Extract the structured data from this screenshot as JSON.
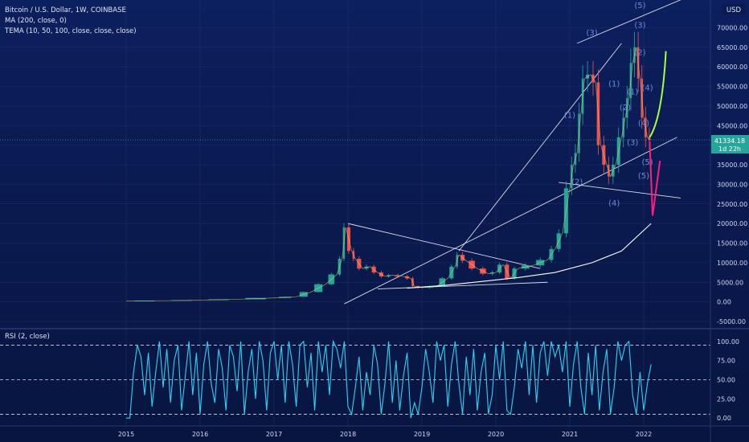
{
  "colors": {
    "background": "#0b1a4d",
    "price_line": "#ffffff",
    "rsi_line": "#2bd3f5",
    "ma_line": "#ffffff",
    "tema_fast": "#f0c850",
    "tema_slow": "#c0392b",
    "bull_candle": "#26a69a",
    "bear_candle": "#ef5350",
    "arrow_up": "#a8ff3e",
    "arrow_down": "#ff1e7a",
    "trendline": "#ffffff",
    "label_bg": "#26a69a",
    "grid": "#1e2f66",
    "wave_label": "#6f8bd8"
  },
  "header": {
    "title": "Bitcoin / U.S. Dollar, 1W, COINBASE",
    "ma": "MA (200, close, 0)",
    "tema": "TEMA (10, 50, 100, close, close, close)",
    "currency": "USD"
  },
  "price_label": {
    "value": "41334.18",
    "countdown": "1d 22h"
  },
  "rsi_label": "RSI (2, close)",
  "chart_data": [
    {
      "type": "line",
      "title": "Bitcoin / U.S. Dollar, 1W, COINBASE",
      "ylim": [
        -5000,
        75000
      ],
      "yticks": [
        -5000,
        0,
        5000,
        10000,
        15000,
        20000,
        25000,
        30000,
        35000,
        40000,
        45000,
        50000,
        55000,
        60000,
        65000,
        70000
      ],
      "ytick_labels": [
        "-5000.00",
        "0.00",
        "5000.00",
        "10000.00",
        "15000.00",
        "20000.00",
        "25000.00",
        "30000.00",
        "35000.00",
        "40000.00",
        "45000.00",
        "50000.00",
        "55000.00",
        "60000.00",
        "65000.00",
        "70000.00"
      ],
      "xlim": [
        2015.0,
        2022.5
      ],
      "xticks": [
        2015,
        2016,
        2017,
        2018,
        2019,
        2020,
        2021,
        2022
      ],
      "xtick_labels": [
        "2015",
        "2016",
        "2017",
        "2018",
        "2019",
        "2020",
        "2021",
        "2022"
      ],
      "series": [
        {
          "name": "Bitcoin / U.S. Dollar",
          "x": [
            2015.0,
            2015.5,
            2016.0,
            2016.5,
            2017.0,
            2017.3,
            2017.5,
            2017.7,
            2017.85,
            2017.92,
            2017.97,
            2018.05,
            2018.1,
            2018.2,
            2018.3,
            2018.4,
            2018.5,
            2018.6,
            2018.75,
            2018.85,
            2018.9,
            2019.0,
            2019.2,
            2019.35,
            2019.45,
            2019.5,
            2019.6,
            2019.75,
            2019.9,
            2020.0,
            2020.1,
            2020.2,
            2020.3,
            2020.5,
            2020.7,
            2020.8,
            2020.9,
            2021.0,
            2021.05,
            2021.1,
            2021.15,
            2021.2,
            2021.28,
            2021.35,
            2021.42,
            2021.5,
            2021.55,
            2021.62,
            2021.7,
            2021.75,
            2021.8,
            2021.85,
            2021.9,
            2021.95,
            2022.0,
            2022.05,
            2022.1
          ],
          "values": [
            250,
            300,
            430,
            650,
            1000,
            1300,
            2500,
            4500,
            7000,
            11000,
            19000,
            13000,
            11000,
            8500,
            9000,
            7500,
            6500,
            6800,
            6500,
            6000,
            4000,
            3600,
            4000,
            6000,
            9000,
            12000,
            10500,
            8500,
            7200,
            7500,
            9500,
            6000,
            8500,
            9300,
            10700,
            13500,
            17500,
            29000,
            35000,
            38000,
            48000,
            57000,
            58000,
            56000,
            40000,
            35000,
            32000,
            35000,
            42000,
            47000,
            52000,
            61000,
            65000,
            57000,
            47000,
            42000,
            41334
          ]
        },
        {
          "name": "MA (200, close, 0)",
          "x": [
            2018.8,
            2019.3,
            2019.8,
            2020.3,
            2020.8,
            2021.3,
            2021.7,
            2022.1
          ],
          "values": [
            3500,
            4200,
            5200,
            6200,
            7500,
            10000,
            13000,
            20000
          ]
        }
      ],
      "annotations": [
        "(1)",
        "(2)",
        "(3)",
        "(4)",
        "(5)",
        "(1)",
        "(2)",
        "(3)",
        "(4)",
        "(5)",
        "(1)",
        "(2)",
        "(3)",
        "(4)",
        "(5)"
      ]
    },
    {
      "type": "line",
      "title": "RSI (2, close)",
      "ylim": [
        -5,
        105
      ],
      "yticks": [
        0,
        25,
        50,
        75,
        100
      ],
      "ytick_labels": [
        "0.00",
        "25.00",
        "50.00",
        "75.00",
        "100.00"
      ],
      "reference_lines": [
        95,
        50,
        5
      ],
      "series": [
        {
          "name": "RSI (2, close)",
          "x": [
            2015.0,
            2015.05,
            2015.1,
            2015.15,
            2015.2,
            2015.25,
            2015.3,
            2015.35,
            2015.4,
            2015.45,
            2015.5,
            2015.55,
            2015.6,
            2015.65,
            2015.7,
            2015.75,
            2015.8,
            2015.85,
            2015.9,
            2015.95,
            2016.0,
            2016.05,
            2016.1,
            2016.15,
            2016.2,
            2016.25,
            2016.3,
            2016.35,
            2016.4,
            2016.45,
            2016.5,
            2016.55,
            2016.6,
            2016.65,
            2016.7,
            2016.75,
            2016.8,
            2016.85,
            2016.9,
            2016.95,
            2017.0,
            2017.05,
            2017.1,
            2017.15,
            2017.2,
            2017.25,
            2017.3,
            2017.35,
            2017.4,
            2017.45,
            2017.5,
            2017.55,
            2017.6,
            2017.65,
            2017.7,
            2017.75,
            2017.8,
            2017.85,
            2017.9,
            2017.95,
            2018.0,
            2018.05,
            2018.1,
            2018.15,
            2018.2,
            2018.25,
            2018.3,
            2018.35,
            2018.4,
            2018.45,
            2018.5,
            2018.55,
            2018.6,
            2018.65,
            2018.7,
            2018.75,
            2018.8,
            2018.85,
            2018.9,
            2018.95,
            2019.0,
            2019.05,
            2019.1,
            2019.15,
            2019.2,
            2019.25,
            2019.3,
            2019.35,
            2019.4,
            2019.45,
            2019.5,
            2019.55,
            2019.6,
            2019.65,
            2019.7,
            2019.75,
            2019.8,
            2019.85,
            2019.9,
            2019.95,
            2020.0,
            2020.05,
            2020.1,
            2020.15,
            2020.2,
            2020.25,
            2020.3,
            2020.35,
            2020.4,
            2020.45,
            2020.5,
            2020.55,
            2020.6,
            2020.65,
            2020.7,
            2020.75,
            2020.8,
            2020.85,
            2020.9,
            2020.95,
            2021.0,
            2021.05,
            2021.1,
            2021.15,
            2021.2,
            2021.25,
            2021.3,
            2021.35,
            2021.4,
            2021.45,
            2021.5,
            2021.55,
            2021.6,
            2021.65,
            2021.7,
            2021.75,
            2021.8,
            2021.85,
            2021.9,
            2021.95,
            2022.0,
            2022.05,
            2022.1
          ],
          "values": [
            0,
            0,
            60,
            95,
            80,
            30,
            85,
            15,
            60,
            100,
            40,
            90,
            20,
            75,
            95,
            10,
            55,
            100,
            30,
            85,
            5,
            70,
            100,
            45,
            20,
            90,
            65,
            10,
            95,
            80,
            35,
            100,
            5,
            60,
            90,
            25,
            100,
            75,
            10,
            85,
            100,
            50,
            95,
            20,
            100,
            70,
            15,
            95,
            100,
            40,
            85,
            10,
            100,
            60,
            95,
            30,
            100,
            90,
            65,
            100,
            15,
            5,
            40,
            80,
            10,
            60,
            30,
            95,
            70,
            5,
            45,
            100,
            20,
            75,
            10,
            55,
            85,
            0,
            20,
            5,
            40,
            90,
            60,
            20,
            100,
            75,
            95,
            15,
            70,
            100,
            45,
            5,
            80,
            30,
            90,
            10,
            60,
            85,
            5,
            30,
            95,
            50,
            100,
            10,
            5,
            40,
            90,
            65,
            100,
            30,
            95,
            20,
            85,
            100,
            55,
            100,
            80,
            95,
            60,
            100,
            15,
            70,
            100,
            40,
            5,
            85,
            30,
            95,
            10,
            60,
            90,
            5,
            40,
            100,
            75,
            95,
            100,
            30,
            5,
            60,
            10,
            45,
            70
          ]
        }
      ]
    }
  ]
}
